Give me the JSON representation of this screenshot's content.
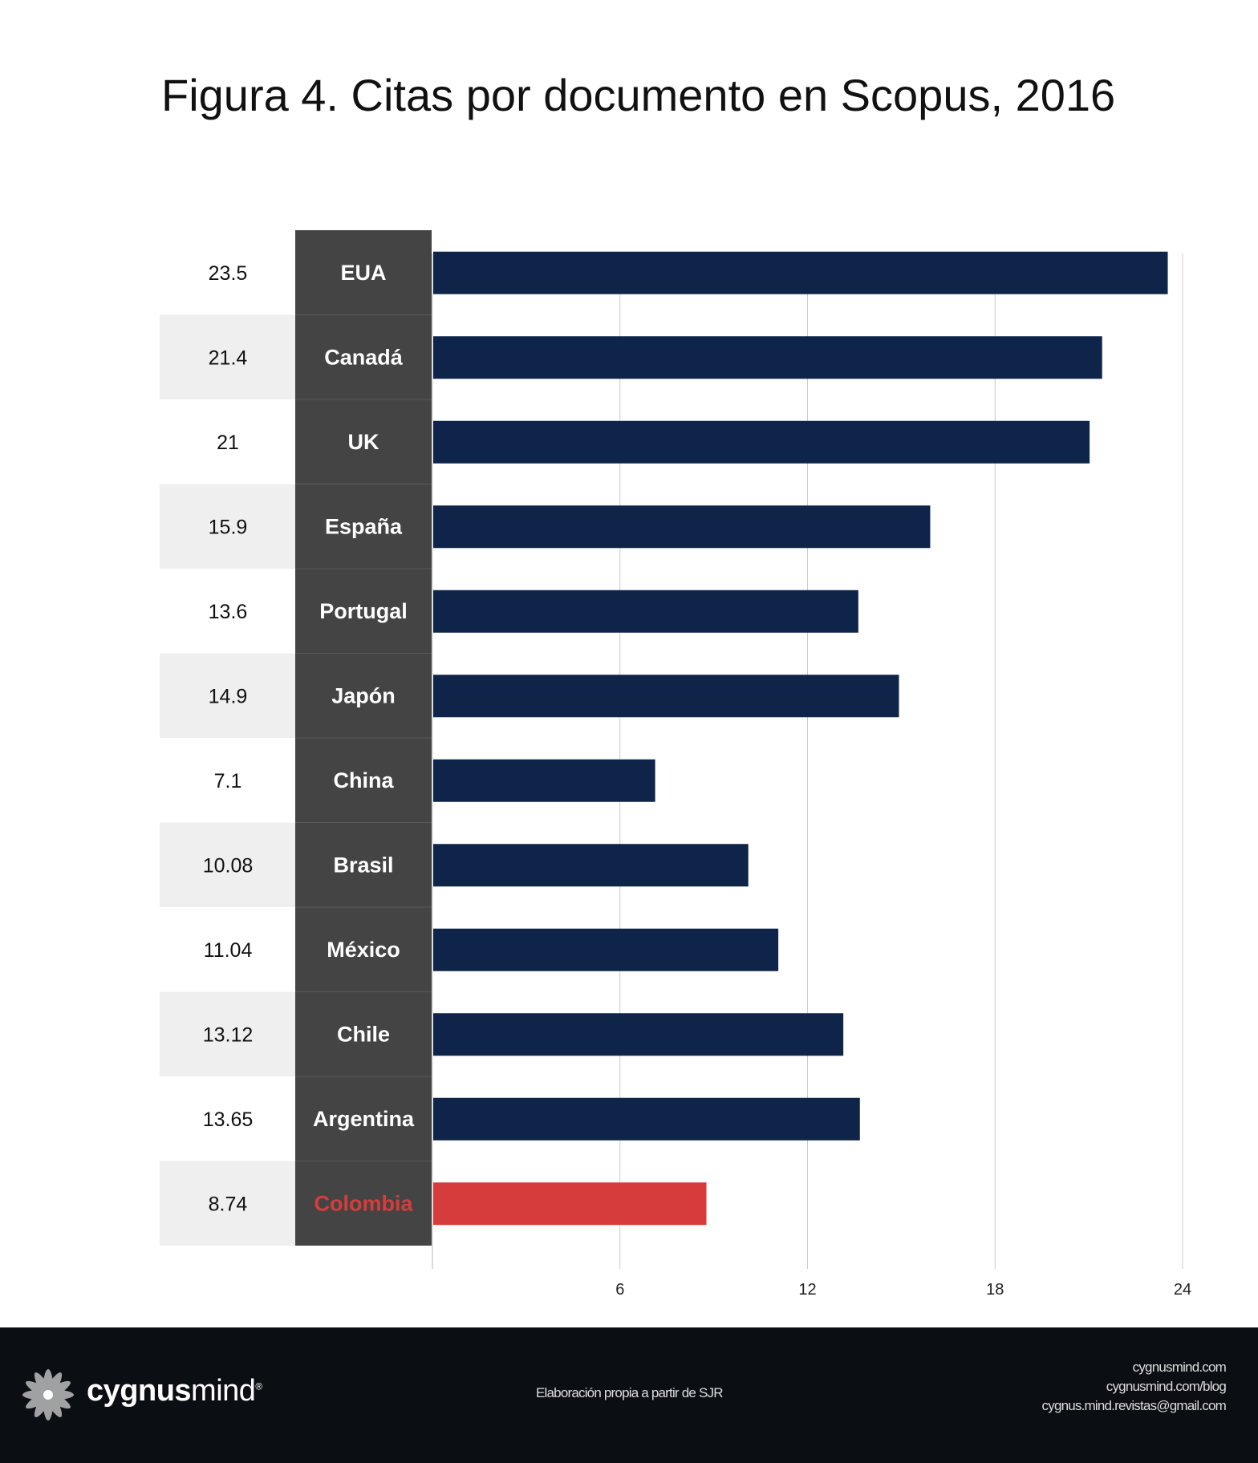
{
  "chart_data": {
    "type": "bar",
    "orientation": "horizontal",
    "title": "Figura 4. Citas por documento en Scopus, 2016",
    "categories": [
      "EUA",
      "Canadá",
      "UK",
      "España",
      "Portugal",
      "Japón",
      "China",
      "Brasil",
      "México",
      "Chile",
      "Argentina",
      "Colombia"
    ],
    "values": [
      23.5,
      21.4,
      21,
      15.9,
      13.6,
      14.9,
      7.1,
      10.08,
      11.04,
      13.12,
      13.65,
      8.74
    ],
    "value_labels": [
      "23.5",
      "21.4",
      "21",
      "15.9",
      "13.6",
      "14.9",
      "7.1",
      "10.08",
      "11.04",
      "13.12",
      "13.65",
      "8.74"
    ],
    "highlight": "Colombia",
    "xlim": [
      0,
      24
    ],
    "xticks": [
      6,
      12,
      18,
      24
    ],
    "xtick_labels": [
      "6",
      "12",
      "18",
      "24"
    ],
    "grid": true,
    "xlabel": "",
    "ylabel": ""
  },
  "colors": {
    "bar": "#0e2449",
    "highlight": "#d73c3c",
    "label_col": "#444444",
    "alt_row": "#efefef"
  },
  "footer": {
    "brand_bold": "cygnus",
    "brand_light": "mind",
    "brand_mark": "®",
    "source": "Elaboración propia a partir de SJR",
    "links": [
      "cygnusmind.com",
      "cygnusmind.com/blog",
      "cygnus.mind.revistas@gmail.com"
    ]
  }
}
